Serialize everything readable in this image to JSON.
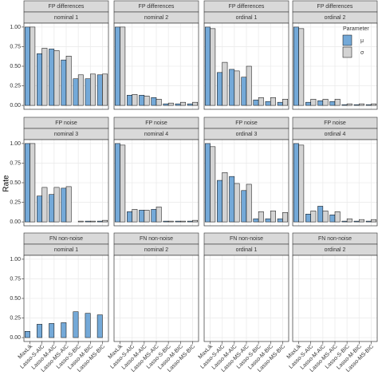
{
  "ylabel": "Rate",
  "legend": {
    "title": "Parameter",
    "entries": [
      {
        "name": "μ",
        "color": "#74a9d8"
      },
      {
        "name": "σ",
        "color": "#d3d3d3"
      }
    ]
  },
  "chart_data": [
    {
      "type": "bar",
      "facet_row": "FP differences",
      "facet_col": "nominal 1",
      "ylim": [
        -0.05,
        1.05
      ],
      "yticks": [
        {
          "value": 0,
          "label": "0.00"
        },
        {
          "value": 0.25,
          "label": "0.25"
        },
        {
          "value": 0.5,
          "label": "0.50"
        },
        {
          "value": 0.75,
          "label": "0.75"
        },
        {
          "value": 1,
          "label": "1.00"
        }
      ],
      "series": [
        {
          "values": [
            1.0,
            0.66,
            0.72,
            0.58,
            0.34,
            0.34,
            0.39
          ]
        },
        {
          "values": [
            1.0,
            0.73,
            0.7,
            0.63,
            0.39,
            0.4,
            0.4
          ]
        }
      ]
    },
    {
      "type": "bar",
      "facet_row": "FP differences",
      "facet_col": "nominal 2",
      "ylim": [
        -0.05,
        1.05
      ],
      "series": [
        {
          "values": [
            1.0,
            0.13,
            0.13,
            0.1,
            0.02,
            0.02,
            0.02
          ]
        },
        {
          "values": [
            1.0,
            0.14,
            0.12,
            0.08,
            0.03,
            0.04,
            0.04
          ]
        }
      ]
    },
    {
      "type": "bar",
      "facet_row": "FP differences",
      "facet_col": "ordinal 1",
      "ylim": [
        -0.05,
        1.05
      ],
      "series": [
        {
          "values": [
            1.0,
            0.42,
            0.46,
            0.36,
            0.07,
            0.05,
            0.04
          ]
        },
        {
          "values": [
            0.98,
            0.55,
            0.44,
            0.5,
            0.1,
            0.1,
            0.08
          ]
        }
      ]
    },
    {
      "type": "bar",
      "facet_row": "FP differences",
      "facet_col": "ordinal 2",
      "ylim": [
        -0.05,
        1.05
      ],
      "series": [
        {
          "values": [
            1.0,
            0.04,
            0.06,
            0.05,
            0.01,
            0.01,
            0.01
          ]
        },
        {
          "values": [
            0.98,
            0.08,
            0.08,
            0.08,
            0.02,
            0.02,
            0.02
          ]
        }
      ]
    },
    {
      "type": "bar",
      "facet_row": "FP noise",
      "facet_col": "nominal 3",
      "ylim": [
        -0.05,
        1.05
      ],
      "yticks": [
        {
          "value": 0,
          "label": "0.00"
        },
        {
          "value": 0.25,
          "label": "0.25"
        },
        {
          "value": 0.5,
          "label": "0.50"
        },
        {
          "value": 0.75,
          "label": "0.75"
        },
        {
          "value": 1,
          "label": "1.00"
        }
      ],
      "series": [
        {
          "values": [
            1.0,
            0.33,
            0.35,
            0.43,
            0.0,
            0.01,
            0.01
          ]
        },
        {
          "values": [
            1.0,
            0.44,
            0.44,
            0.45,
            0.01,
            0.01,
            0.02
          ]
        }
      ]
    },
    {
      "type": "bar",
      "facet_row": "FP noise",
      "facet_col": "nominal 4",
      "ylim": [
        -0.05,
        1.05
      ],
      "series": [
        {
          "values": [
            1.0,
            0.13,
            0.15,
            0.16,
            0.01,
            0.01,
            0.01
          ]
        },
        {
          "values": [
            0.98,
            0.16,
            0.15,
            0.19,
            0.01,
            0.01,
            0.02
          ]
        }
      ]
    },
    {
      "type": "bar",
      "facet_row": "FP noise",
      "facet_col": "ordinal 3",
      "ylim": [
        -0.05,
        1.05
      ],
      "series": [
        {
          "values": [
            1.0,
            0.53,
            0.58,
            0.4,
            0.04,
            0.04,
            0.04
          ]
        },
        {
          "values": [
            0.96,
            0.63,
            0.49,
            0.48,
            0.13,
            0.14,
            0.12
          ]
        }
      ]
    },
    {
      "type": "bar",
      "facet_row": "FP noise",
      "facet_col": "ordinal 4",
      "ylim": [
        -0.05,
        1.05
      ],
      "series": [
        {
          "values": [
            1.0,
            0.1,
            0.2,
            0.09,
            0.01,
            0.01,
            0.01
          ]
        },
        {
          "values": [
            0.98,
            0.14,
            0.14,
            0.13,
            0.04,
            0.03,
            0.03
          ]
        }
      ]
    },
    {
      "type": "bar",
      "facet_row": "FN non-noise",
      "facet_col": "nominal 1",
      "ylim": [
        -0.05,
        1.05
      ],
      "yticks": [
        {
          "value": 0,
          "label": "0.00"
        },
        {
          "value": 0.25,
          "label": "0.25"
        },
        {
          "value": 0.5,
          "label": "0.50"
        },
        {
          "value": 0.75,
          "label": "0.75"
        },
        {
          "value": 1,
          "label": "1.00"
        }
      ],
      "categories": [
        "MaxLik",
        "Lasso-S-AIC",
        "Lasso-M-AIC",
        "Lasso-MS-AIC",
        "Lasso-S-BIC",
        "Lasso-M-BIC",
        "Lasso-MS-BIC"
      ],
      "series": [
        {
          "values": [
            0.08,
            0.17,
            0.18,
            0.19,
            0.33,
            0.31,
            0.29
          ]
        },
        {
          "values": [
            null,
            null,
            null,
            null,
            null,
            null,
            null
          ]
        }
      ]
    },
    {
      "type": "bar",
      "facet_row": "FN non-noise",
      "facet_col": "nominal 2",
      "ylim": [
        -0.05,
        1.05
      ],
      "categories": [
        "MaxLik",
        "Lasso-S-AIC",
        "Lasso-M-AIC",
        "Lasso-MS-AIC",
        "Lasso-S-BIC",
        "Lasso-M-BIC",
        "Lasso-MS-BIC"
      ],
      "series": [
        {
          "values": [
            0,
            0,
            0,
            0,
            0,
            0,
            0
          ]
        },
        {
          "values": [
            null,
            null,
            null,
            null,
            null,
            null,
            null
          ]
        }
      ]
    },
    {
      "type": "bar",
      "facet_row": "FN non-noise",
      "facet_col": "ordinal 1",
      "ylim": [
        -0.05,
        1.05
      ],
      "categories": [
        "MaxLik",
        "Lasso-S-AIC",
        "Lasso-M-AIC",
        "Lasso-MS-AIC",
        "Lasso-S-BIC",
        "Lasso-M-BIC",
        "Lasso-MS-BIC"
      ],
      "series": [
        {
          "values": [
            0,
            0,
            0,
            0,
            0,
            0,
            0
          ]
        },
        {
          "values": [
            null,
            null,
            null,
            null,
            null,
            null,
            null
          ]
        }
      ]
    },
    {
      "type": "bar",
      "facet_row": "FN non-noise",
      "facet_col": "ordinal 2",
      "ylim": [
        -0.05,
        1.05
      ],
      "categories": [
        "MaxLik",
        "Lasso-S-AIC",
        "Lasso-M-AIC",
        "Lasso-MS-AIC",
        "Lasso-S-BIC",
        "Lasso-M-BIC",
        "Lasso-MS-BIC"
      ],
      "series": [
        {
          "values": [
            0,
            0,
            0,
            0,
            0,
            0,
            0
          ]
        },
        {
          "values": [
            null,
            null,
            null,
            null,
            null,
            null,
            null
          ]
        }
      ]
    }
  ]
}
